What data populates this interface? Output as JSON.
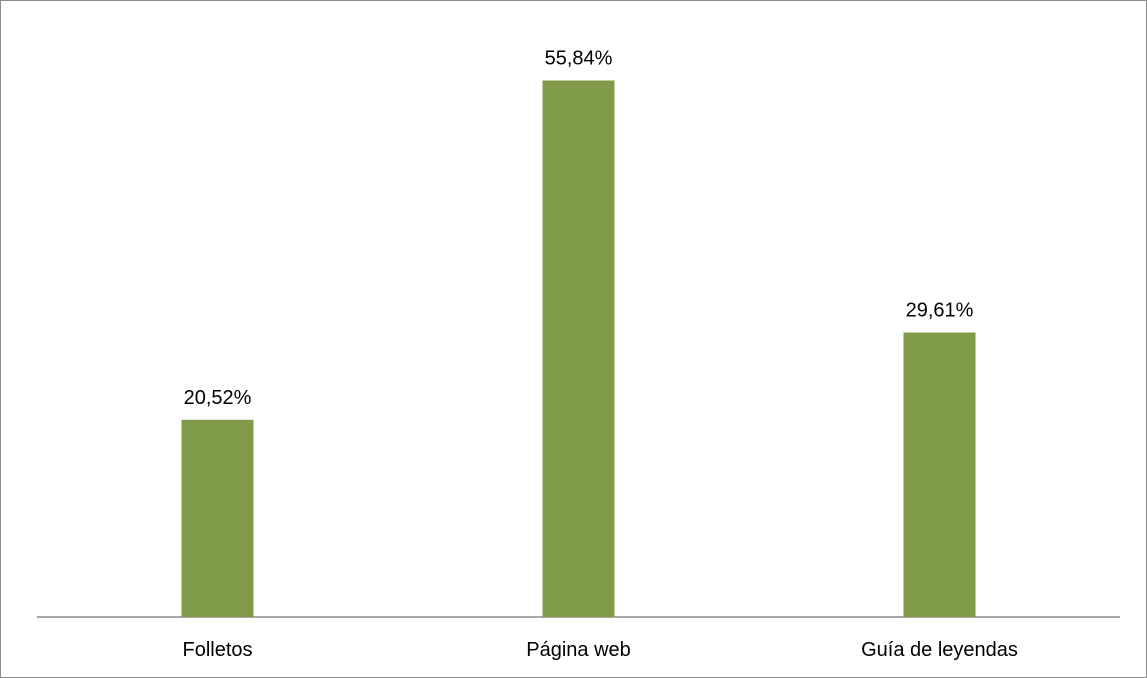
{
  "chart_data": {
    "type": "bar",
    "categories": [
      "Folletos",
      "Página web",
      "Guía de leyendas"
    ],
    "values": [
      20.52,
      55.84,
      29.61
    ],
    "data_labels": [
      "20,52%",
      "55,84%",
      "29,61%"
    ],
    "ylim": [
      0,
      60
    ],
    "grid": false,
    "legend": "none",
    "bar_color": "#7f9a48",
    "axis_color": "#8c8c8c"
  }
}
